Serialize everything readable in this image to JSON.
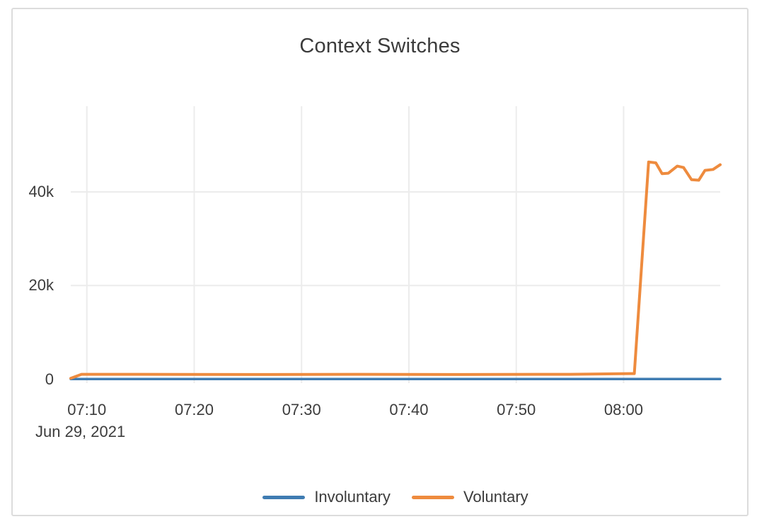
{
  "card": {
    "title": "Context Switches"
  },
  "colors": {
    "background": "#ffffff",
    "card_border": "#dcdcdc",
    "grid": "#ececec",
    "text": "#3c3c3c",
    "involuntary_blue": "#3f7cb2",
    "voluntary_orange": "#ee8b3e"
  },
  "chart_data": {
    "type": "line",
    "title": "Context Switches",
    "grid": true,
    "legend_position": "bottom-center",
    "x_axis": {
      "date_label": "Jun 29, 2021",
      "ticks": [
        "07:10",
        "07:20",
        "07:30",
        "07:40",
        "07:50",
        "08:00"
      ],
      "range": [
        "07:08:30",
        "08:09:00"
      ]
    },
    "y_axis": {
      "ticks": [
        {
          "label": "0",
          "value": 0
        },
        {
          "label": "20k",
          "value": 20000
        },
        {
          "label": "40k",
          "value": 40000
        }
      ],
      "range": [
        0,
        58300
      ]
    },
    "series": [
      {
        "name": "Involuntary",
        "color": "#3f7cb2",
        "width": 3.5,
        "points": [
          [
            "07:08:30",
            30
          ],
          [
            "07:30:00",
            30
          ],
          [
            "08:00:00",
            30
          ],
          [
            "08:09:00",
            30
          ]
        ]
      },
      {
        "name": "Voluntary",
        "color": "#ee8b3e",
        "width": 4,
        "points": [
          [
            "07:08:30",
            200
          ],
          [
            "07:09:30",
            1050
          ],
          [
            "07:15:00",
            1050
          ],
          [
            "07:25:00",
            1000
          ],
          [
            "07:35:00",
            1050
          ],
          [
            "07:45:00",
            1000
          ],
          [
            "07:55:00",
            1050
          ],
          [
            "08:01:00",
            1200
          ],
          [
            "08:02:20",
            46400
          ],
          [
            "08:03:00",
            46200
          ],
          [
            "08:03:35",
            43900
          ],
          [
            "08:04:10",
            44000
          ],
          [
            "08:05:00",
            45500
          ],
          [
            "08:05:35",
            45200
          ],
          [
            "08:06:20",
            42600
          ],
          [
            "08:07:00",
            42500
          ],
          [
            "08:07:35",
            44600
          ],
          [
            "08:08:20",
            44800
          ],
          [
            "08:09:00",
            45800
          ]
        ]
      }
    ]
  }
}
